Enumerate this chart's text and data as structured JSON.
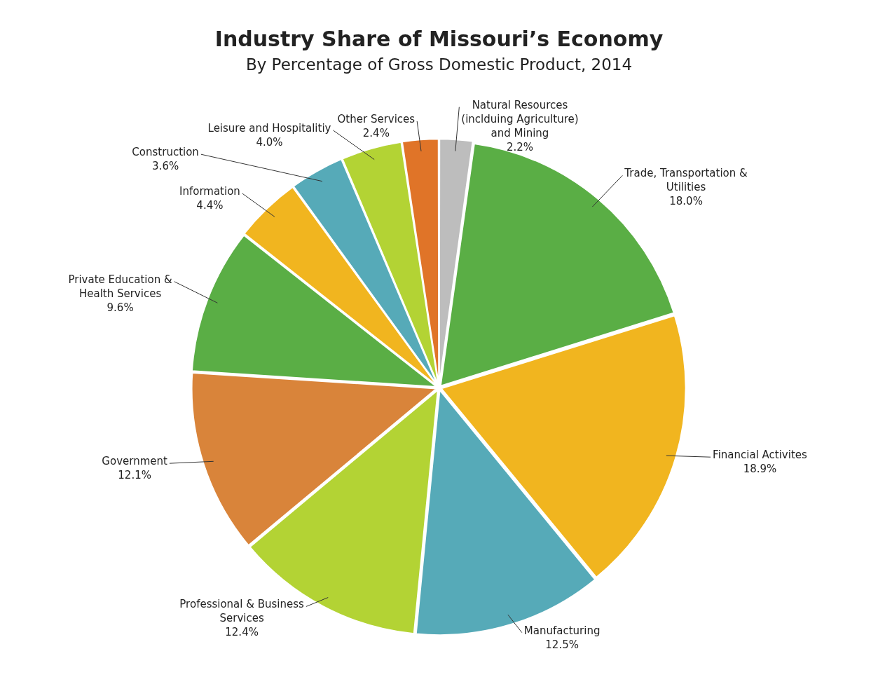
{
  "chart_data": {
    "type": "pie",
    "title": "Industry Share of Missouri’s Economy",
    "subtitle": "By Percentage of Gross Domestic Product, 2014",
    "categories": [
      "Natural Resources (inclduing Agriculture) and Mining",
      "Trade, Transportation & Utilities",
      "Financial Activites",
      "Manufacturing",
      "Professional & Business Services",
      "Government",
      "Private Education & Health Services",
      "Information",
      "Construction",
      "Leisure and Hospitalitiy",
      "Other Services"
    ],
    "values": [
      2.2,
      18.0,
      18.9,
      12.5,
      12.4,
      12.1,
      9.6,
      4.4,
      3.6,
      4.0,
      2.4
    ],
    "value_labels": [
      "2.2%",
      "18.0%",
      "18.9%",
      "12.5%",
      "12.4%",
      "12.1%",
      "9.6%",
      "4.4%",
      "3.6%",
      "4.0%",
      "2.4%"
    ],
    "colors": [
      "#bdbdbd",
      "#5aae45",
      "#f1b51f",
      "#56aab8",
      "#b3d334",
      "#d9843a",
      "#5aae45",
      "#f1b51f",
      "#56aab8",
      "#b3d334",
      "#e07428"
    ],
    "legend": false
  }
}
